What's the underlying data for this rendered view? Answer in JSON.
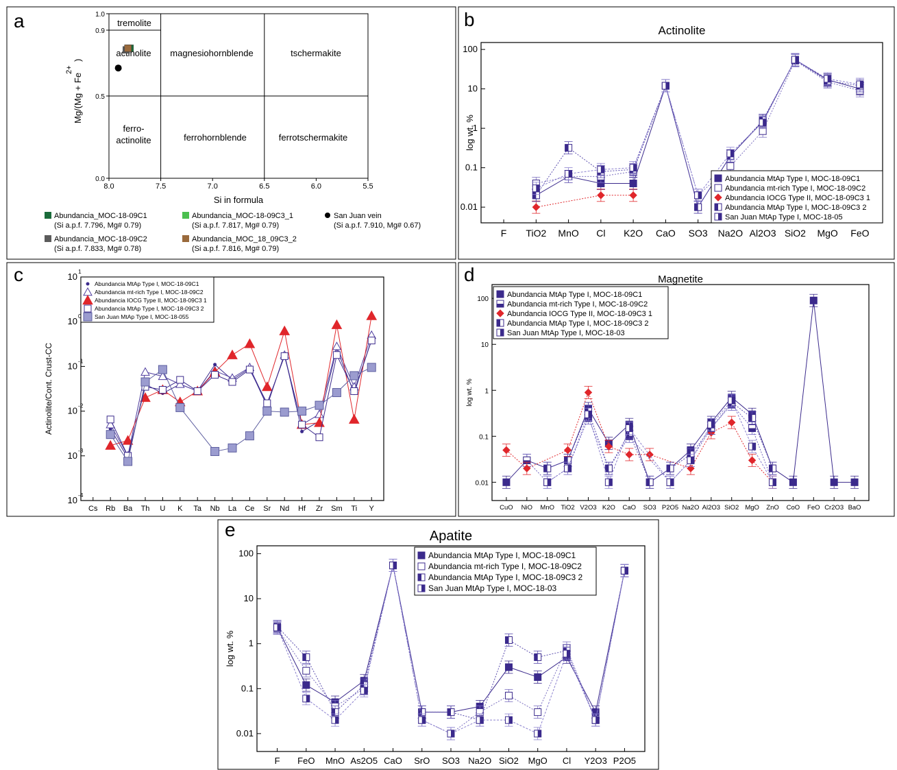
{
  "panel_labels": [
    "a",
    "b",
    "c",
    "d",
    "e"
  ],
  "chart_data": [
    {
      "id": "a",
      "type": "scatter",
      "title": "",
      "xlabel": "Si in formula",
      "ylabel": "Mg/(Mg + Fe2+)",
      "ylabel_parts": [
        "Mg/(Mg + Fe",
        "2+",
        ")"
      ],
      "xlim": [
        8.0,
        5.5
      ],
      "ylim": [
        0.0,
        1.0
      ],
      "x_ticks": [
        "8.0",
        "7.5",
        "7.0",
        "6.5",
        "6.0",
        "5.5"
      ],
      "y_ticks": [
        "0.0",
        "0.5",
        "0.9",
        "1.0"
      ],
      "fields": [
        "tremolite",
        "actinolite",
        "magnesiohornblende",
        "tschermakite",
        "ferro-",
        "actinolite",
        "ferrohornblende",
        "ferrotschermakite"
      ],
      "series": [
        {
          "name": "Abundancia_MOC-18-09C1",
          "note": "(Si a.p.f. 7.796, Mg# 0.79)",
          "x": 7.796,
          "y": 0.79,
          "color": "#1a6b3a",
          "marker": "square"
        },
        {
          "name": "Abundancia_MOC-18-09C3_1",
          "note": "(Si a.p.f. 7.817, Mg# 0.79)",
          "x": 7.817,
          "y": 0.79,
          "color": "#4bbf4f",
          "marker": "square"
        },
        {
          "name": "San Juan vein",
          "note": "(Si a.p.f. 7.910, Mg# 0.67)",
          "x": 7.91,
          "y": 0.67,
          "color": "#000000",
          "marker": "circle"
        },
        {
          "name": "Abundancia_MOC-18-09C2",
          "note": "(Si a.p.f. 7.833, Mg# 0.78)",
          "x": 7.833,
          "y": 0.78,
          "color": "#5b5b5b",
          "marker": "square"
        },
        {
          "name": "Abundancia_MOC_18_09C3_2",
          "note": "(Si a.p.f. 7.816, Mg# 0.79)",
          "x": 7.816,
          "y": 0.79,
          "color": "#9a6a3c",
          "marker": "square"
        }
      ]
    },
    {
      "id": "b",
      "type": "line",
      "title": "Actinolite",
      "ylabel": "log wt. %",
      "yscale": "log",
      "ylim": [
        0.004,
        150
      ],
      "y_ticks": [
        "100",
        "10",
        "1",
        "0.1",
        "0.01"
      ],
      "categories": [
        "F",
        "TiO2",
        "MnO",
        "Cl",
        "K2O",
        "CaO",
        "SO3",
        "Na2O",
        "Al2O3",
        "SiO2",
        "MgO",
        "FeO"
      ],
      "series": [
        {
          "name": "Abundancia MtAp Type I, MOC-18-09C1",
          "values": [
            null,
            0.02,
            0.06,
            0.04,
            0.04,
            12,
            0.01,
            0.2,
            1.5,
            55,
            17,
            10
          ]
        },
        {
          "name": "Abundancia mt-rich Type I, MOC-18-09C2",
          "values": [
            null,
            0.04,
            0.06,
            0.06,
            0.08,
            12,
            0.02,
            0.11,
            0.85,
            52,
            15,
            9
          ]
        },
        {
          "name": "Abundancia IOCG Type II, MOC-18-09C3 1",
          "values": [
            null,
            0.01,
            null,
            0.02,
            0.02,
            null,
            null,
            null,
            null,
            null,
            null,
            null
          ]
        },
        {
          "name": "Abundancia MtAp Type I, MOC-18-09C3 2",
          "values": [
            null,
            0.02,
            0.32,
            0.08,
            0.09,
            12,
            0.01,
            0.2,
            1.6,
            54,
            16,
            12
          ]
        },
        {
          "name": "San Juan MtAp Type I, MOC-18-05",
          "values": [
            null,
            0.03,
            0.07,
            0.09,
            0.1,
            12,
            0.02,
            0.23,
            1.4,
            55,
            18,
            13
          ]
        }
      ]
    },
    {
      "id": "c",
      "type": "line",
      "title": "",
      "ylabel": "Actinolite/Cont. Crust-CC",
      "yscale": "log",
      "ylim": [
        0.0001,
        10
      ],
      "y_ticks": [
        "10",
        "10",
        "10",
        "10",
        "10",
        "10"
      ],
      "y_tick_exps": [
        "1",
        "0",
        "-1",
        "-2",
        "-3",
        "-4"
      ],
      "categories": [
        "Cs",
        "Rb",
        "Ba",
        "Th",
        "U",
        "K",
        "Ta",
        "Nb",
        "La",
        "Ce",
        "Sr",
        "Nd",
        "Hf",
        "Zr",
        "Sm",
        "Ti",
        "Y"
      ],
      "series": [
        {
          "name": "Abundancia MtAp Type I, MOC-18-09C1",
          "values": [
            null,
            0.004,
            0.0009,
            0.04,
            0.025,
            0.04,
            0.028,
            0.11,
            0.05,
            0.09,
            0.013,
            0.19,
            0.0035,
            0.006,
            0.25,
            0.025,
            0.4
          ]
        },
        {
          "name": "Abundancia mt-rich Type I, MOC-18-09C2",
          "values": [
            null,
            0.005,
            0.001,
            0.075,
            0.06,
            0.04,
            0.028,
            0.08,
            0.055,
            0.095,
            0.014,
            0.18,
            0.005,
            0.0085,
            0.28,
            0.035,
            0.5
          ]
        },
        {
          "name": "Abundancia IOCG Type II, MOC-18-09C3 1",
          "values": [
            null,
            0.0017,
            0.0022,
            0.02,
            0.03,
            0.016,
            0.028,
            0.075,
            0.18,
            0.32,
            0.035,
            0.62,
            0.005,
            0.0055,
            0.85,
            0.0065,
            1.35
          ]
        },
        {
          "name": "Abundancia MtAp Type I, MOC-18-09C3 2",
          "values": [
            null,
            0.0065,
            0.001,
            0.035,
            0.03,
            0.05,
            0.028,
            0.065,
            0.045,
            0.085,
            0.015,
            0.17,
            0.005,
            0.0026,
            0.18,
            0.028,
            0.38
          ]
        },
        {
          "name": "San Juan MtAp Type I, MOC-18-055",
          "values": [
            null,
            0.003,
            0.00075,
            0.045,
            0.085,
            0.012,
            null,
            0.00125,
            0.0015,
            0.0028,
            0.01,
            0.0095,
            0.01,
            0.0135,
            0.026,
            0.062,
            0.095
          ]
        }
      ]
    },
    {
      "id": "d",
      "type": "line",
      "title": "Magnetite",
      "ylabel": "log wt. %",
      "yscale": "log",
      "ylim": [
        0.004,
        200
      ],
      "y_ticks": [
        "100",
        "10",
        "1",
        "0.1",
        "0.01"
      ],
      "categories": [
        "CuO",
        "NiO",
        "MnO",
        "TiO2",
        "V2O3",
        "K2O",
        "CaO",
        "SO3",
        "P2O5",
        "Na2O",
        "Al2O3",
        "SiO2",
        "MgO",
        "ZnO",
        "CoO",
        "FeO",
        "Cr2O3",
        "BaO"
      ],
      "series": [
        {
          "name": "Abundancia MtAp Type I, MOC-18-09C1",
          "values": [
            0.01,
            0.03,
            0.02,
            0.03,
            0.4,
            0.07,
            0.18,
            0.01,
            0.02,
            0.05,
            0.2,
            0.7,
            0.3,
            0.02,
            0.01,
            90,
            0.01,
            0.01
          ]
        },
        {
          "name": "Abundancia mt-rich Type I, MOC-18-09C2",
          "values": [
            null,
            0.03,
            0.01,
            0.02,
            0.25,
            0.02,
            0.1,
            null,
            0.01,
            0.03,
            0.15,
            0.5,
            0.15,
            0.01,
            null,
            null,
            null,
            null
          ]
        },
        {
          "name": "Abundancia IOCG Type II, MOC-18-09C3 1",
          "values": [
            0.05,
            0.02,
            null,
            0.05,
            0.9,
            0.06,
            0.04,
            0.04,
            null,
            0.02,
            0.12,
            0.2,
            0.03,
            0.01,
            null,
            null,
            null,
            null
          ]
        },
        {
          "name": "Abundancia MtAp Type I, MOC-18-09C3 2",
          "values": [
            null,
            null,
            0.02,
            0.03,
            0.35,
            0.02,
            0.12,
            0.01,
            0.02,
            0.04,
            0.15,
            0.55,
            0.25,
            0.02,
            null,
            null,
            null,
            null
          ]
        },
        {
          "name": "San Juan MtAp Type I, MOC-18-03",
          "values": [
            null,
            null,
            0.01,
            0.02,
            0.3,
            0.01,
            0.15,
            null,
            0.01,
            0.03,
            0.18,
            0.6,
            0.06,
            0.01,
            null,
            null,
            null,
            null
          ]
        }
      ]
    },
    {
      "id": "e",
      "type": "line",
      "title": "Apatite",
      "ylabel": "log wt. %",
      "yscale": "log",
      "ylim": [
        0.004,
        150
      ],
      "y_ticks": [
        "100",
        "10",
        "1",
        "0.1",
        "0.01"
      ],
      "categories": [
        "F",
        "FeO",
        "MnO",
        "As2O5",
        "CaO",
        "SrO",
        "SO3",
        "Na2O",
        "SiO2",
        "MgO",
        "Cl",
        "Y2O3",
        "P2O5"
      ],
      "series": [
        {
          "name": "Abundancia MtAp Type I, MOC-18-09C1",
          "values": [
            2.3,
            0.12,
            0.05,
            0.15,
            55,
            0.03,
            0.03,
            0.04,
            0.3,
            0.18,
            0.5,
            0.03,
            42
          ]
        },
        {
          "name": "Abundancia mt-rich Type I, MOC-18-09C2",
          "values": [
            2.2,
            0.25,
            0.04,
            0.1,
            55,
            0.02,
            0.01,
            0.03,
            0.07,
            0.03,
            0.8,
            0.02,
            42
          ]
        },
        {
          "name": "Abundancia MtAp Type I, MOC-18-09C3 2",
          "values": [
            2.4,
            0.5,
            0.03,
            0.12,
            55,
            0.03,
            0.03,
            0.02,
            1.2,
            0.5,
            0.7,
            0.02,
            42
          ]
        },
        {
          "name": "San Juan MtAp Type I, MOC-18-03",
          "values": [
            2.3,
            0.06,
            0.02,
            0.09,
            55,
            0.02,
            0.01,
            0.02,
            0.02,
            0.01,
            0.6,
            0.02,
            42
          ]
        }
      ]
    }
  ]
}
